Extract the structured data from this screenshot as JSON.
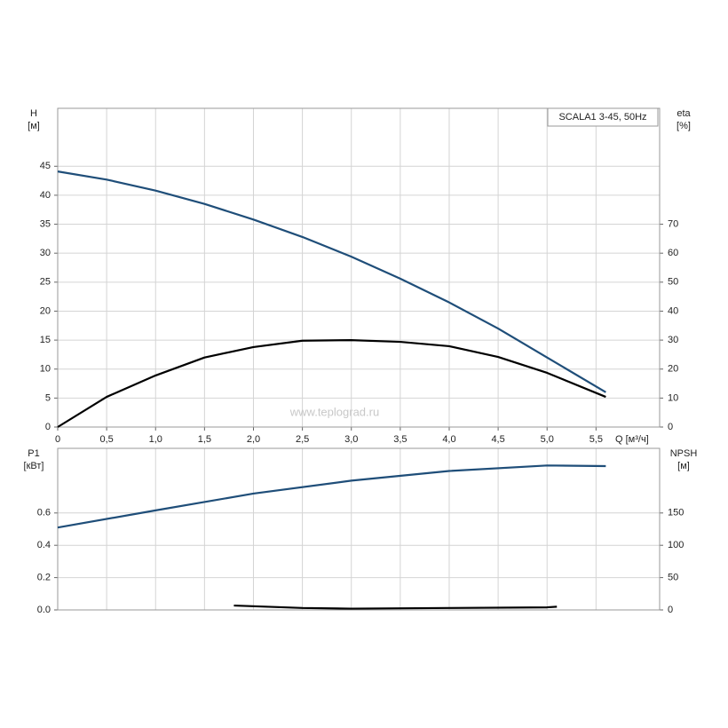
{
  "chart_data": [
    {
      "type": "line",
      "title": "SCALA1 3-45, 50Hz",
      "watermark": "www.teplograd.ru",
      "xlabel": "Q [м³/ч]",
      "yunit": "[м]",
      "y2unit": "[%]",
      "grid": true,
      "xlim": [
        0,
        6.15
      ],
      "ylim": [
        0,
        55
      ],
      "y2lim": [
        0,
        110
      ],
      "xticks": [
        0,
        {
          "value": 0.5,
          "label": "0,5"
        },
        {
          "value": 1.0,
          "label": "1,0"
        },
        {
          "value": 1.5,
          "label": "1,5"
        },
        {
          "value": 2.0,
          "label": "2,0"
        },
        {
          "value": 2.5,
          "label": "2,5"
        },
        {
          "value": 3.0,
          "label": "3,0"
        },
        {
          "value": 3.5,
          "label": "3,5"
        },
        {
          "value": 4.0,
          "label": "4,0"
        },
        {
          "value": 4.5,
          "label": "4,5"
        },
        {
          "value": 5.0,
          "label": "5,0"
        },
        {
          "value": 5.5,
          "label": "5,5"
        }
      ],
      "yticks": [
        0,
        5,
        10,
        15,
        20,
        25,
        30,
        35,
        40,
        45
      ],
      "y2ticks": [
        0,
        10,
        20,
        30,
        40,
        50,
        60,
        70
      ],
      "series": [
        {
          "name": "H",
          "color": "#1f4e79",
          "axis": "y",
          "x": [
            0,
            0.5,
            1.0,
            1.5,
            2.0,
            2.5,
            3.0,
            3.5,
            4.0,
            4.5,
            5.0,
            5.6
          ],
          "values": [
            44.1,
            42.7,
            40.8,
            38.5,
            35.8,
            32.8,
            29.4,
            25.6,
            21.5,
            17.0,
            12.0,
            6.0
          ]
        },
        {
          "name": "eta",
          "color": "#000000",
          "axis": "y2",
          "x": [
            0,
            0.5,
            1.0,
            1.5,
            2.0,
            2.5,
            3.0,
            3.5,
            4.0,
            4.5,
            5.0,
            5.6
          ],
          "values": [
            0,
            10.4,
            17.8,
            24.0,
            27.6,
            29.8,
            30.0,
            29.4,
            27.9,
            24.2,
            18.7,
            10.4
          ]
        }
      ]
    },
    {
      "type": "line",
      "yunit": "[кВт]",
      "y2unit": "[м]",
      "grid": true,
      "xlim": [
        0,
        6.15
      ],
      "ylim": [
        0,
        1.0
      ],
      "y2lim": [
        0,
        250
      ],
      "yticks": [
        {
          "value": 0,
          "label": "0.0"
        },
        0.2,
        0.4,
        0.6
      ],
      "y2ticks": [
        0,
        50,
        100,
        150
      ],
      "series": [
        {
          "name": "P1",
          "color": "#1f4e79",
          "axis": "y",
          "x": [
            0,
            1.0,
            2.0,
            3.0,
            4.0,
            5.0,
            5.6
          ],
          "values": [
            0.51,
            0.616,
            0.72,
            0.8,
            0.86,
            0.894,
            0.89
          ]
        },
        {
          "name": "NPSH",
          "color": "#000000",
          "axis": "y2",
          "x": [
            1.8,
            2.5,
            3.0,
            4.0,
            5.0,
            5.1
          ],
          "values": [
            6.8,
            3,
            2,
            3,
            4,
            5
          ]
        }
      ]
    }
  ]
}
